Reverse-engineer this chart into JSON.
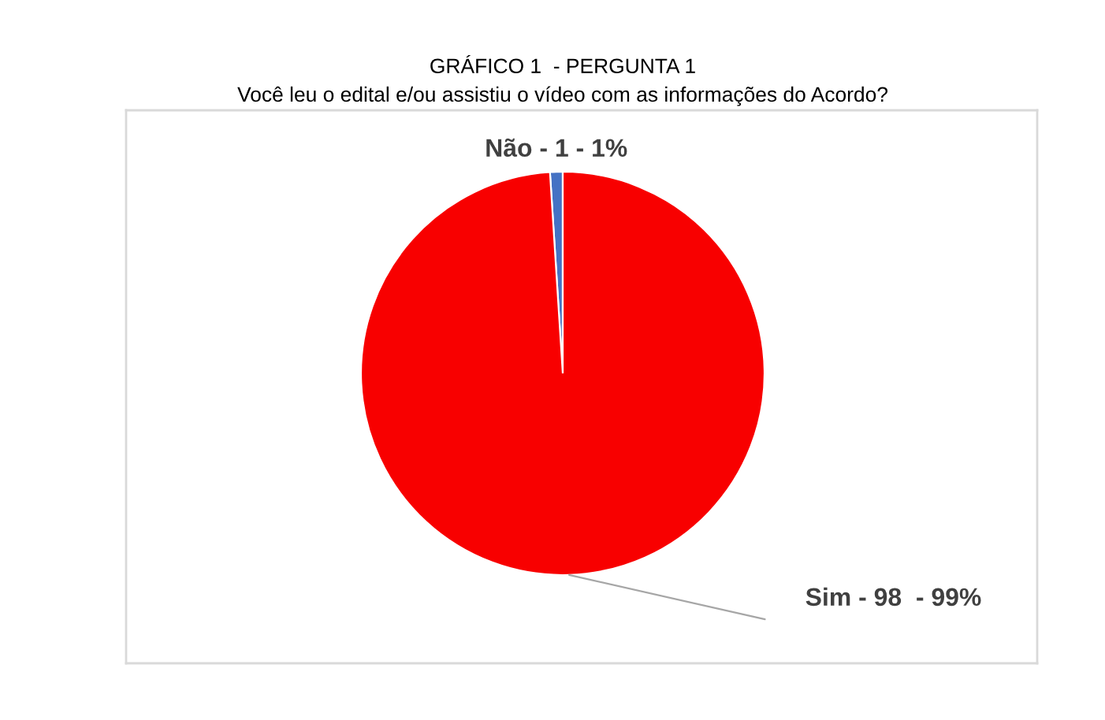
{
  "chart_data": {
    "type": "pie",
    "title": "GRÁFICO 1  - PERGUNTA 1",
    "subtitle": "Você leu o edital e/ou assistiu o vídeo com as informações do Acordo?",
    "categories": [
      "Não",
      "Sim"
    ],
    "values": [
      1,
      98
    ],
    "colors": [
      "#4472c4",
      "#f80000"
    ],
    "value_labels": [
      "1 - 1%",
      "98  - 99%"
    ]
  }
}
